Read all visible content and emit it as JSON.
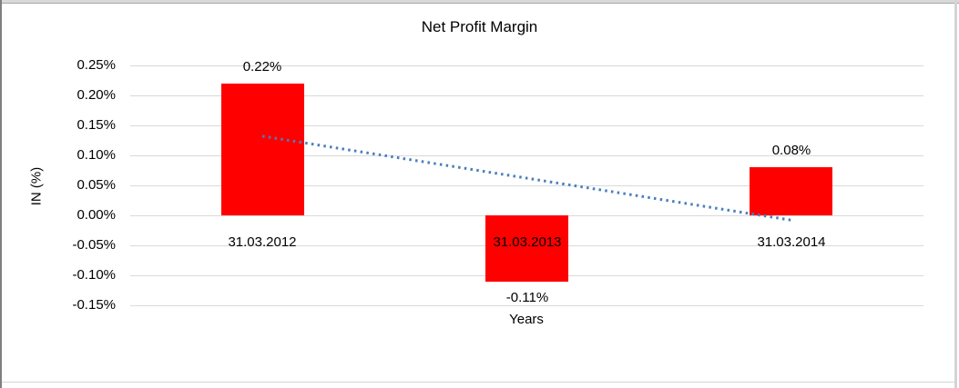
{
  "chart_data": {
    "type": "bar",
    "title": "Net Profit Margin",
    "xlabel": "Years",
    "ylabel": "IN (%)",
    "categories": [
      "31.03.2012",
      "31.03.2013",
      "31.03.2014"
    ],
    "values": [
      0.22,
      -0.11,
      0.08
    ],
    "data_labels": [
      "0.22%",
      "-0.11%",
      "0.08%"
    ],
    "yticks": {
      "values": [
        0.25,
        0.2,
        0.15,
        0.1,
        0.05,
        0.0,
        -0.05,
        -0.1,
        -0.15
      ],
      "labels": [
        "0.25%",
        "0.20%",
        "0.15%",
        "0.10%",
        "0.05%",
        "0.00%",
        "-0.05%",
        "-0.10%",
        "-0.15%"
      ]
    },
    "ylim": [
      -0.15,
      0.25
    ],
    "grid": true,
    "legend": "none",
    "bar_color": "#ff0000",
    "gridline_color": "#d9d9d9",
    "text_color": "#000000",
    "trendline": {
      "style": "dotted",
      "color": "#4a7ebb",
      "start_value": 0.132,
      "end_value": -0.008
    }
  }
}
